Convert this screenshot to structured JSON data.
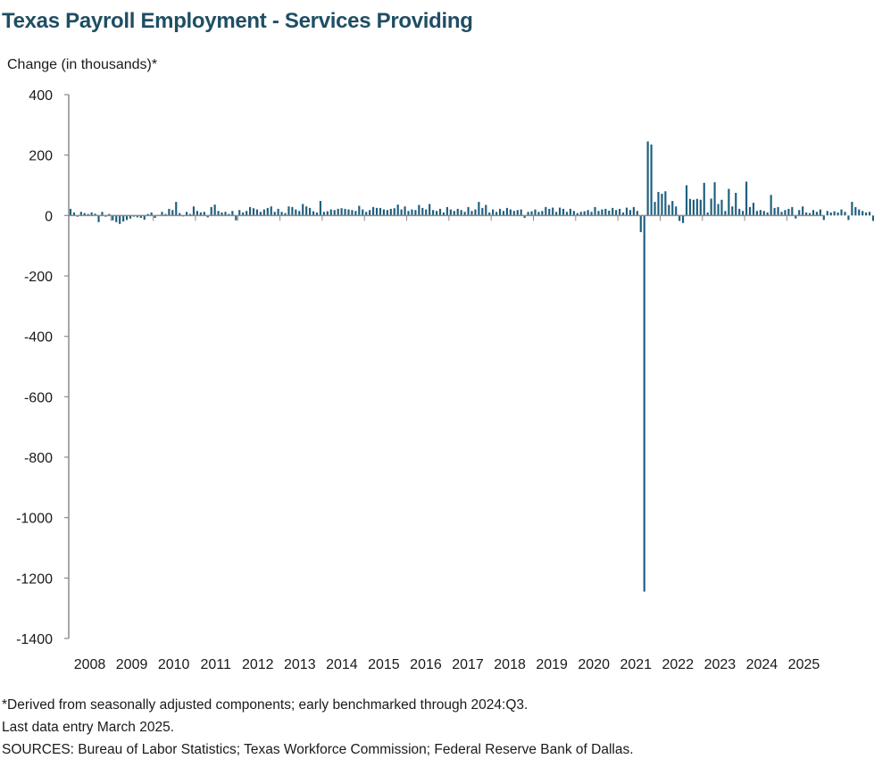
{
  "chart_data": {
    "type": "bar",
    "title": "Texas Payroll Employment - Services Providing",
    "ylabel": "Change (in thousands)*",
    "xlabel": "",
    "ylim": [
      -1400,
      400
    ],
    "yticks": [
      400,
      200,
      0,
      -200,
      -400,
      -600,
      -800,
      -1000,
      -1200,
      -1400
    ],
    "xlim": [
      2008.0,
      2025.9
    ],
    "xtick_labels": [
      "2008",
      "2009",
      "2010",
      "2011",
      "2012",
      "2013",
      "2014",
      "2015",
      "2016",
      "2017",
      "2018",
      "2019",
      "2020",
      "2021",
      "2022",
      "2023",
      "2024",
      "2025"
    ],
    "bar_color": "#1f5f7f",
    "grid": false,
    "start": "2008-01",
    "end": "2025-03",
    "values": [
      22,
      10,
      -4,
      12,
      8,
      5,
      10,
      6,
      -22,
      12,
      -4,
      5,
      -16,
      -22,
      -28,
      -20,
      -15,
      -10,
      -4,
      -6,
      -8,
      -14,
      5,
      10,
      -8,
      2,
      12,
      5,
      22,
      18,
      45,
      8,
      -3,
      12,
      5,
      30,
      15,
      10,
      12,
      -6,
      28,
      36,
      15,
      10,
      12,
      5,
      15,
      -16,
      18,
      10,
      15,
      28,
      24,
      20,
      12,
      20,
      25,
      30,
      12,
      22,
      12,
      8,
      30,
      28,
      20,
      15,
      38,
      30,
      25,
      14,
      10,
      48,
      12,
      14,
      20,
      18,
      22,
      24,
      22,
      20,
      18,
      15,
      32,
      20,
      12,
      18,
      28,
      25,
      25,
      20,
      18,
      22,
      24,
      36,
      20,
      30,
      15,
      20,
      18,
      35,
      25,
      20,
      38,
      18,
      15,
      22,
      10,
      28,
      20,
      15,
      22,
      18,
      12,
      28,
      15,
      20,
      45,
      25,
      35,
      10,
      20,
      12,
      22,
      15,
      25,
      20,
      15,
      18,
      20,
      -8,
      12,
      14,
      20,
      12,
      15,
      28,
      22,
      26,
      12,
      26,
      22,
      12,
      22,
      15,
      8,
      12,
      14,
      18,
      12,
      28,
      15,
      20,
      22,
      16,
      25,
      18,
      22,
      10,
      26,
      18,
      28,
      15,
      -55,
      -1245,
      245,
      235,
      45,
      78,
      72,
      80,
      35,
      48,
      30,
      -18,
      -25,
      100,
      55,
      52,
      55,
      52,
      108,
      10,
      56,
      110,
      38,
      52,
      15,
      88,
      30,
      75,
      22,
      15,
      112,
      28,
      42,
      15,
      18,
      15,
      10,
      68,
      25,
      28,
      12,
      18,
      22,
      28,
      -10,
      18,
      30,
      10,
      8,
      18,
      12,
      20,
      -15,
      15,
      10,
      14,
      10,
      20,
      12,
      -15,
      45,
      28,
      20,
      15,
      10,
      12,
      -18,
      18,
      10
    ]
  },
  "footnotes": {
    "line1": "*Derived from seasonally adjusted components; early benchmarked through 2024:Q3.",
    "line2": "Last data entry March 2025.",
    "line3": "SOURCES: Bureau of Labor Statistics; Texas Workforce Commission; Federal Reserve Bank of Dallas."
  }
}
